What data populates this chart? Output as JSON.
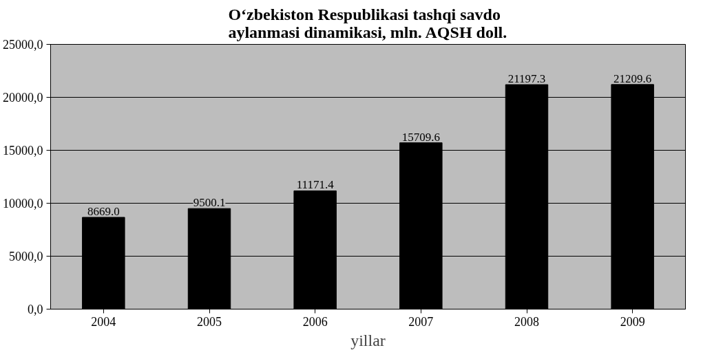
{
  "chart_data": {
    "type": "bar",
    "title": "O‘zbekiston Respublikasi tashqi savdo aylanmasi dinamikasi, mln. AQSH doll.",
    "xlabel": "yillar",
    "categories": [
      "2004",
      "2005",
      "2006",
      "2007",
      "2008",
      "2009"
    ],
    "values": [
      8669.0,
      9500.1,
      11171.4,
      15709.6,
      21197.3,
      21209.6
    ],
    "value_labels": [
      "8669.0",
      "9500.1",
      "11171.4",
      "15709.6",
      "21197.3",
      "21209.6"
    ],
    "color": "#000000",
    "ylim": [
      0,
      25000
    ],
    "yticks": [
      {
        "value": 0,
        "label": "0,0"
      },
      {
        "value": 5000,
        "label": "5000,0"
      },
      {
        "value": 10000,
        "label": "10000,0"
      },
      {
        "value": 15000,
        "label": "15000,0"
      },
      {
        "value": 20000,
        "label": "20000,0"
      },
      {
        "value": 25000,
        "label": "25000,0"
      }
    ],
    "grid": "y"
  }
}
